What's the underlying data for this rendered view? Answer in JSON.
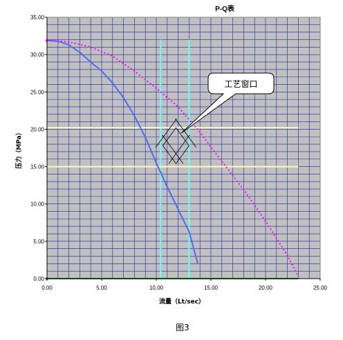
{
  "chart_data": {
    "type": "line",
    "title": "P-Q表",
    "xlabel": "流量（Lt/sec）",
    "ylabel": "压力（MPa）",
    "xlim": [
      0,
      25
    ],
    "ylim": [
      0,
      35
    ],
    "x_ticks": [
      "0.00",
      "5.00",
      "10.00",
      "15.00",
      "20.00",
      "25.00"
    ],
    "y_ticks": [
      "0.00",
      "5.00",
      "10.00",
      "15.00",
      "20.00",
      "25.00",
      "30.00",
      "35.00"
    ],
    "grid": true,
    "x_minor_step": 1,
    "y_minor_step": 1,
    "plot_background": "#c0c0c0",
    "series": [
      {
        "color": "#4a6cf0",
        "dash": "solid",
        "points": [
          [
            0,
            31.9
          ],
          [
            1,
            31.8
          ],
          [
            2,
            31.3
          ],
          [
            3,
            30.3
          ],
          [
            4,
            29.0
          ],
          [
            5,
            27.8
          ],
          [
            6,
            26.2
          ],
          [
            7,
            24.2
          ],
          [
            8,
            21.8
          ],
          [
            9,
            18.9
          ],
          [
            10,
            15.5
          ],
          [
            11,
            12.3
          ],
          [
            12,
            9.3
          ],
          [
            13,
            6.3
          ],
          [
            13.8,
            2.0
          ]
        ]
      },
      {
        "color": "#ff00ff",
        "dash": "dotted",
        "points": [
          [
            0,
            31.9
          ],
          [
            2,
            31.7
          ],
          [
            4,
            31.0
          ],
          [
            6,
            29.8
          ],
          [
            8,
            27.8
          ],
          [
            10,
            25.5
          ],
          [
            12,
            23.0
          ],
          [
            14,
            19.6
          ],
          [
            16,
            15.7
          ],
          [
            18,
            11.9
          ],
          [
            20,
            7.7
          ],
          [
            22,
            3.1
          ],
          [
            23,
            0.3
          ]
        ]
      },
      {
        "color": "#00a000",
        "dash": "solid",
        "points": [
          [
            0,
            0
          ],
          [
            23,
            0
          ]
        ]
      }
    ],
    "reference_lines": {
      "vertical": [
        {
          "x": 10.4,
          "y_range": [
            0,
            32
          ],
          "color": "#66ffff"
        },
        {
          "x": 13.0,
          "y_range": [
            0,
            32
          ],
          "color": "#66ffff"
        }
      ],
      "horizontal": [
        {
          "y": 20.2,
          "x_range": [
            0,
            23
          ],
          "color": "#ffffaa"
        },
        {
          "y": 15.0,
          "x_range": [
            0,
            23
          ],
          "color": "#ffffaa"
        }
      ]
    },
    "hatched_region": {
      "vertices": [
        [
          10.6,
          17.8
        ],
        [
          11.8,
          20.2
        ],
        [
          13.0,
          17.8
        ],
        [
          11.8,
          15.4
        ]
      ]
    },
    "annotation": {
      "text": "工艺窗口",
      "anchor": [
        12.3,
        19.5
      ]
    },
    "caption": "图3"
  }
}
